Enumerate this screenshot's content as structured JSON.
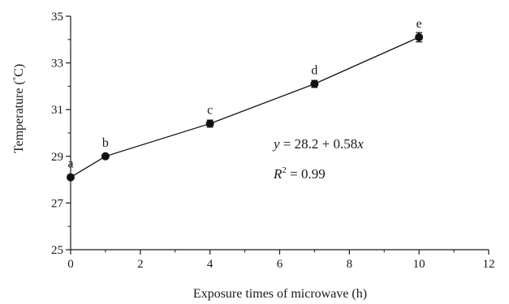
{
  "chart_data": {
    "type": "scatter",
    "xlabel": "Exposure times of microwave (h)",
    "ylabel_parts": [
      "Temperature (",
      "°",
      "C)"
    ],
    "xlim": [
      0,
      12
    ],
    "ylim": [
      25,
      35
    ],
    "x_ticks": [
      "0",
      "2",
      "4",
      "6",
      "8",
      "10",
      "12"
    ],
    "y_ticks": [
      "25",
      "27",
      "29",
      "31",
      "33",
      "35"
    ],
    "grid": false,
    "series": [
      {
        "x": [
          0,
          1,
          4,
          7,
          10
        ],
        "y": [
          28.1,
          29.0,
          30.4,
          32.1,
          34.1
        ],
        "error": [
          0.05,
          0.05,
          0.15,
          0.15,
          0.2
        ],
        "point_labels": [
          "a",
          "b",
          "c",
          "d",
          "e"
        ]
      }
    ],
    "annotations": {
      "equation": {
        "y": "y",
        "eq": " = 28.2 + 0.58",
        "x": "x"
      },
      "r2": {
        "r": "R",
        "exp": "2",
        "eq": " = 0.99"
      }
    },
    "colors": {
      "line": "#111111",
      "marker": "#111111",
      "axis": "#1a1a1a"
    }
  }
}
